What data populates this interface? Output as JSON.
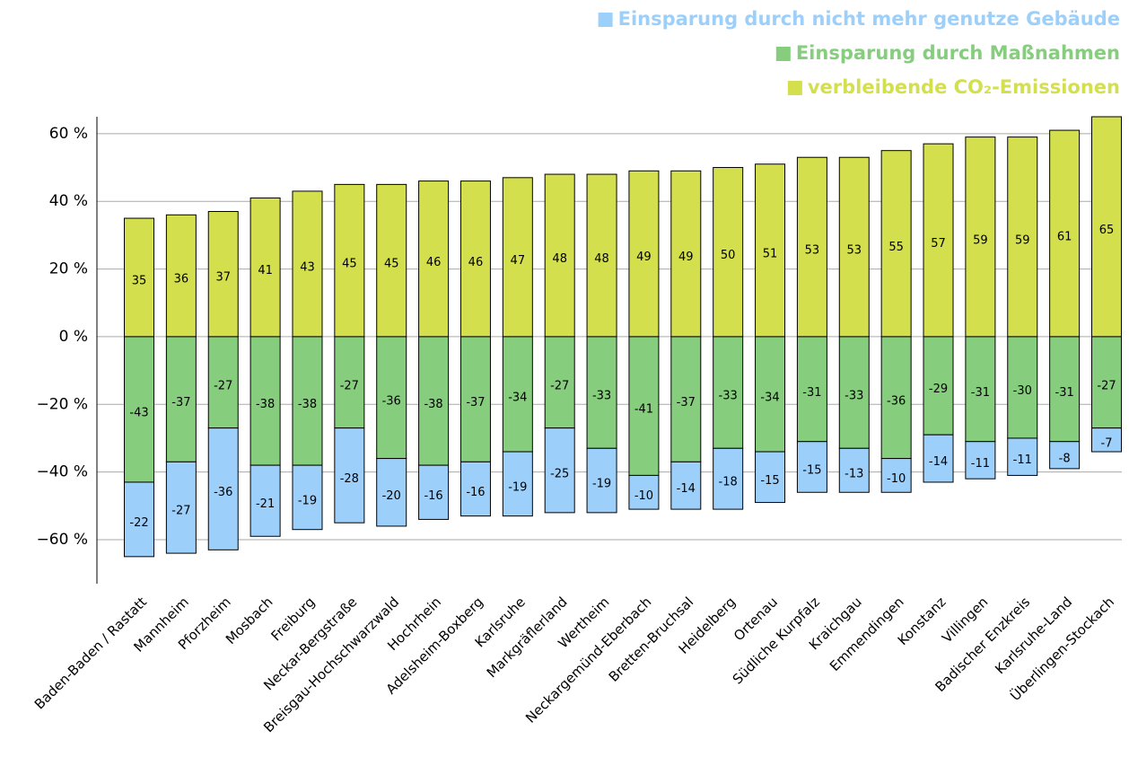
{
  "chart_data": {
    "type": "bar",
    "stacked": true,
    "categories": [
      "Baden-Baden / Rastatt",
      "Mannheim",
      "Pforzheim",
      "Mosbach",
      "Freiburg",
      "Neckar-Bergstraße",
      "Breisgau-Hochschwarzwald",
      "Hochrhein",
      "Adelsheim-Boxberg",
      "Karlsruhe",
      "Markgräflerland",
      "Wertheim",
      "Neckargemünd-Eberbach",
      "Bretten-Bruchsal",
      "Heidelberg",
      "Ortenau",
      "Südliche Kurpfalz",
      "Kraichgau",
      "Emmendingen",
      "Konstanz",
      "Villingen",
      "Badischer Enzkreis",
      "Karlsruhe-Land",
      "Überlingen-Stockach"
    ],
    "series": [
      {
        "name": "Einsparung durch nicht mehr genutze Gebäude",
        "color": "#9dcffb",
        "values": [
          -22,
          -27,
          -36,
          -21,
          -19,
          -28,
          -20,
          -16,
          -16,
          -19,
          -25,
          -19,
          -10,
          -14,
          -18,
          -15,
          -15,
          -13,
          -10,
          -14,
          -11,
          -11,
          -8,
          -7
        ]
      },
      {
        "name": "Einsparung durch Maßnahmen",
        "color": "#86cd7e",
        "values": [
          -43,
          -37,
          -27,
          -38,
          -38,
          -27,
          -36,
          -38,
          -37,
          -34,
          -27,
          -33,
          -41,
          -37,
          -33,
          -34,
          -31,
          -33,
          -36,
          -29,
          -31,
          -30,
          -31,
          -27
        ]
      },
      {
        "name": "verbleibende CO₂-Emissionen",
        "color": "#d3df4c",
        "values": [
          35,
          36,
          37,
          41,
          43,
          45,
          45,
          46,
          46,
          47,
          48,
          48,
          49,
          49,
          50,
          51,
          53,
          53,
          55,
          57,
          59,
          59,
          61,
          65
        ]
      }
    ],
    "ylim": [
      -73,
      65
    ],
    "yticks": [
      {
        "value": -60,
        "label": "−60 %"
      },
      {
        "value": -40,
        "label": "−40 %"
      },
      {
        "value": -20,
        "label": "−20 %"
      },
      {
        "value": 0,
        "label": "0 %"
      },
      {
        "value": 20,
        "label": "20 %"
      },
      {
        "value": 40,
        "label": "40 %"
      },
      {
        "value": 60,
        "label": "60 %"
      }
    ],
    "grid": true,
    "legend": "top-right"
  }
}
